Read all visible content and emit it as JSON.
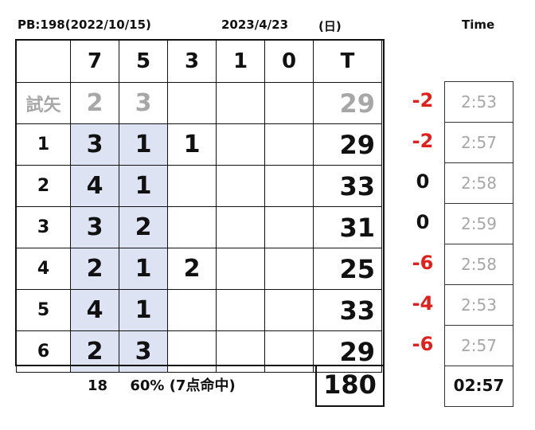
{
  "header": {
    "pb": "PB:198(2022/10/15)",
    "date": "2023/4/23",
    "day_of_week": "(日)",
    "time_label": "Time"
  },
  "columns": [
    "",
    "7",
    "5",
    "3",
    "1",
    "0",
    "T"
  ],
  "rows": [
    {
      "label": "試矢",
      "cells": [
        "2",
        "3",
        "",
        "",
        ""
      ],
      "total": "29",
      "diff": "-2",
      "time": "2:53"
    },
    {
      "label": "1",
      "cells": [
        "3",
        "1",
        "1",
        "",
        ""
      ],
      "total": "29",
      "diff": "-2",
      "time": "2:57"
    },
    {
      "label": "2",
      "cells": [
        "4",
        "1",
        "",
        "",
        ""
      ],
      "total": "33",
      "diff": "0",
      "time": "2:58"
    },
    {
      "label": "3",
      "cells": [
        "3",
        "2",
        "",
        "",
        ""
      ],
      "total": "31",
      "diff": "0",
      "time": "2:59"
    },
    {
      "label": "4",
      "cells": [
        "2",
        "1",
        "2",
        "",
        ""
      ],
      "total": "25",
      "diff": "-6",
      "time": "2:58"
    },
    {
      "label": "5",
      "cells": [
        "4",
        "1",
        "",
        "",
        ""
      ],
      "total": "33",
      "diff": "-4",
      "time": "2:53"
    },
    {
      "label": "6",
      "cells": [
        "2",
        "3",
        "",
        "",
        ""
      ],
      "total": "29",
      "diff": "-6",
      "time": "2:57"
    }
  ],
  "summary": {
    "arrows": "18",
    "hit_rate": "60% (7点命中)",
    "total": "180",
    "final_time": "02:57"
  },
  "colors": {
    "highlight": "#dde3f3",
    "negative": "#e0201c",
    "trial_gray": "#a7a7a7"
  }
}
